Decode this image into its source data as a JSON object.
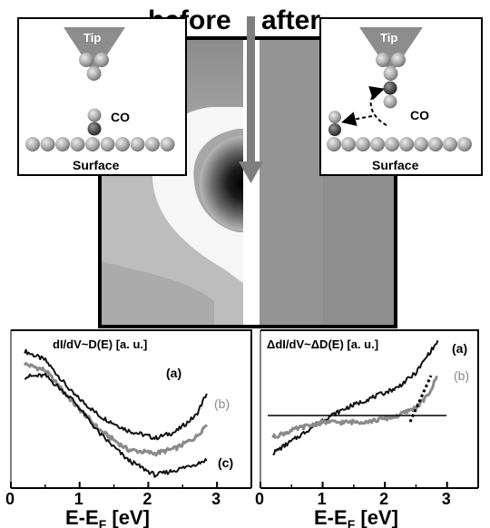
{
  "header": {
    "before": "before",
    "after": "after"
  },
  "left_inset": {
    "tip": "Tip",
    "adsorbate": "CO",
    "surface": "Surface"
  },
  "right_inset": {
    "tip": "Tip",
    "adsorbate": "CO",
    "surface": "Surface"
  },
  "panel_left": {
    "title": "dI/dV~D(E) [a. u.]",
    "labels": [
      "(a)",
      "(b)",
      "(c)"
    ]
  },
  "panel_right": {
    "title": "ΔdI/dV~ΔD(E) [a. u.]",
    "labels": [
      "(a)",
      "(b)"
    ]
  },
  "axis": {
    "ticks": [
      "0",
      "1",
      "2",
      "3"
    ],
    "xlabel_base": "E-E",
    "xlabel_sub": "F",
    "xlabel_unit": " [eV]"
  },
  "colors": {
    "trace_black": "#111111",
    "trace_gray": "#8a8a8a"
  },
  "chart_data": [
    {
      "type": "line",
      "title": "dI/dV~D(E) [a. u.]",
      "xlabel": "E-EF [eV]",
      "xlim": [
        0,
        3.5
      ],
      "x": [
        0.2,
        0.5,
        0.9,
        1.3,
        1.7,
        2.1,
        2.4,
        2.7,
        2.85
      ],
      "series": [
        {
          "name": "(a)",
          "values": [
            0.95,
            0.88,
            0.62,
            0.44,
            0.33,
            0.27,
            0.32,
            0.45,
            0.62
          ]
        },
        {
          "name": "(b)",
          "values": [
            0.85,
            0.8,
            0.55,
            0.33,
            0.18,
            0.15,
            0.19,
            0.28,
            0.38
          ]
        },
        {
          "name": "(c)",
          "values": [
            0.75,
            0.76,
            0.57,
            0.3,
            0.1,
            -0.02,
            0.02,
            0.07,
            0.1
          ]
        }
      ]
    },
    {
      "type": "line",
      "title": "ΔdI/dV~ΔD(E) [a. u.]",
      "xlabel": "E-EF [eV]",
      "xlim": [
        0,
        3.5
      ],
      "x": [
        0.2,
        0.6,
        1.0,
        1.4,
        1.8,
        2.2,
        2.5,
        2.7,
        2.85
      ],
      "series": [
        {
          "name": "(a)",
          "values": [
            0.15,
            0.28,
            0.42,
            0.52,
            0.6,
            0.68,
            0.8,
            0.95,
            1.05
          ]
        },
        {
          "name": "(b)",
          "values": [
            0.28,
            0.35,
            0.4,
            0.4,
            0.41,
            0.45,
            0.52,
            0.62,
            0.78
          ]
        }
      ]
    }
  ]
}
